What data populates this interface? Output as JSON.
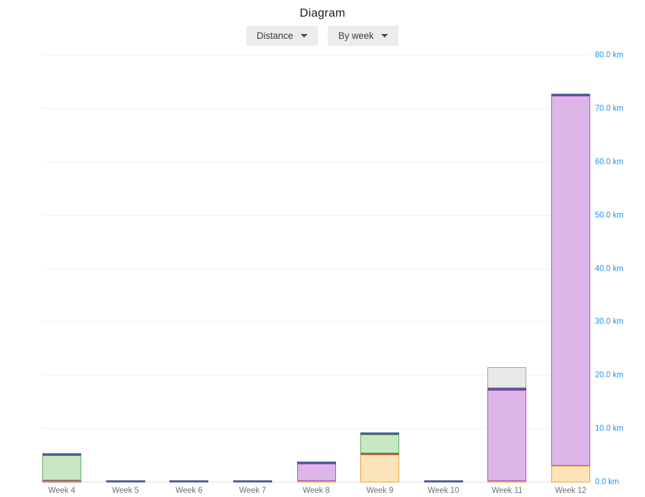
{
  "header": {
    "title": "Diagram",
    "controls": [
      {
        "label": "Distance"
      },
      {
        "label": "By week"
      }
    ]
  },
  "chart_data": {
    "type": "bar",
    "stacked": true,
    "title": "Diagram",
    "unit": "km",
    "categories": [
      "Week 4",
      "Week 5",
      "Week 6",
      "Week 7",
      "Week 8",
      "Week 9",
      "Week 10",
      "Week 11",
      "Week 12"
    ],
    "series": [
      {
        "name": "orange",
        "fill": "#fce3ba",
        "stroke": "#f0a132",
        "values": [
          0,
          0,
          0,
          0,
          0.2,
          5.2,
          0,
          0.3,
          3.1
        ]
      },
      {
        "name": "red",
        "fill": "#d8a3ab",
        "stroke": "#a94b5e",
        "values": [
          0.35,
          0,
          0,
          0,
          0,
          0.3,
          0,
          0,
          0
        ]
      },
      {
        "name": "green",
        "fill": "#c9e7c4",
        "stroke": "#57b259",
        "values": [
          4.7,
          0,
          0,
          0,
          0,
          3.5,
          0,
          0,
          0
        ]
      },
      {
        "name": "purple",
        "fill": "#dcb6e6",
        "stroke": "#aa53be",
        "values": [
          0,
          0,
          0,
          0,
          3.2,
          0,
          0,
          17.0,
          69.4
        ]
      },
      {
        "name": "blue",
        "fill": "#5a69a3",
        "stroke": "#46538c",
        "values": [
          0.45,
          0.4,
          0.4,
          0.4,
          0.4,
          0.4,
          0.4,
          0.4,
          0.4
        ]
      },
      {
        "name": "gray",
        "fill": "#e9e9e9",
        "stroke": "#a2a2a2",
        "values": [
          0,
          0,
          0,
          0,
          0,
          0,
          0,
          3.9,
          0
        ]
      }
    ],
    "totals_km": [
      5.5,
      0.4,
      0.4,
      0.4,
      3.8,
      9.4,
      0.4,
      21.6,
      72.9
    ],
    "ylim": [
      0,
      80
    ],
    "yticks": [
      {
        "value": 0,
        "label": "0.0 km"
      },
      {
        "value": 10,
        "label": "10.0 km"
      },
      {
        "value": 20,
        "label": "20.0 km"
      },
      {
        "value": 30,
        "label": "30.0 km"
      },
      {
        "value": 40,
        "label": "40.0 km"
      },
      {
        "value": 50,
        "label": "50.0 km"
      },
      {
        "value": 60,
        "label": "60.0 km"
      },
      {
        "value": 70,
        "label": "70.0 km"
      },
      {
        "value": 80,
        "label": "80.0 km"
      }
    ],
    "grid": true,
    "legend_position": "none",
    "colors": {
      "y_tick_label": "#2a8fe8",
      "x_tick_label": "#6e6e6e",
      "gridline": "#f2f2f2",
      "baseline": "#dcdcdc"
    }
  }
}
